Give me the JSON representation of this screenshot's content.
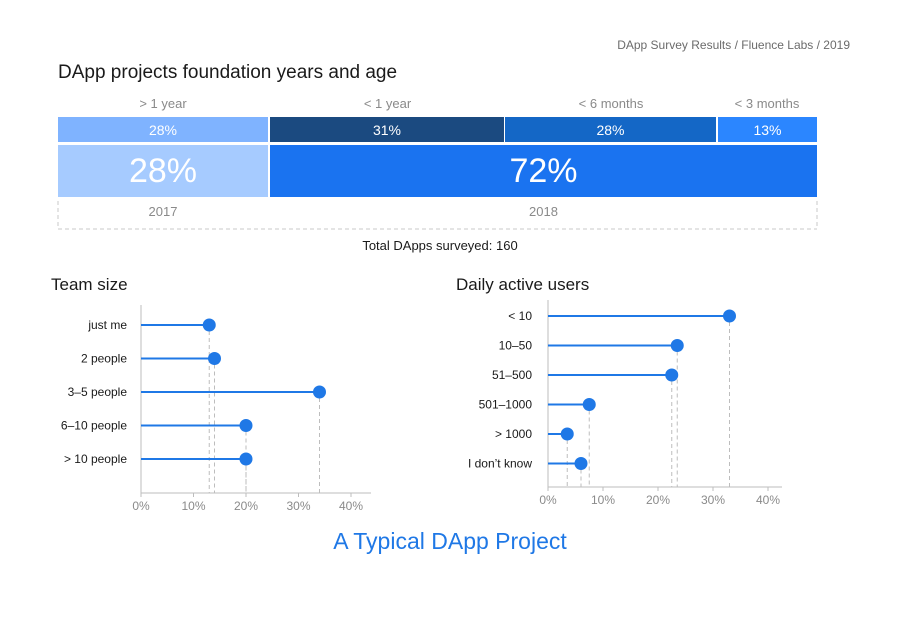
{
  "header": {
    "source": "DApp Survey Results / Fluence Labs / 2019",
    "title": "DApp projects foundation years and age"
  },
  "footer": {
    "title": "A Typical DApp Project"
  },
  "colors": {
    "accent": "#1f78e6",
    "seg_gt1": "#7fb3ff",
    "big_2017": "#a6cbff",
    "seg_lt1": "#1b4a80",
    "seg_lt6": "#1467c6",
    "seg_lt3": "#2b86ff",
    "big_2018": "#1a73f0"
  },
  "chart_data": [
    {
      "type": "bar",
      "title": "DApp projects foundation years and age",
      "categories": [
        "> 1 year",
        "< 1 year",
        "< 6 months",
        "< 3 months"
      ],
      "values": [
        28,
        31,
        28,
        13
      ],
      "value_labels": [
        "28%",
        "31%",
        "28%",
        "13%"
      ],
      "groups": [
        {
          "year": "2017",
          "value": 28,
          "label": "28%"
        },
        {
          "year": "2018",
          "value": 72,
          "label": "72%"
        }
      ],
      "note": "Total DApps surveyed: 160"
    },
    {
      "type": "scatter",
      "title": "Team size",
      "categories": [
        "just me",
        "2 people",
        "3–5 people",
        "6–10 people",
        "> 10 people"
      ],
      "values": [
        13,
        14,
        34,
        20,
        20
      ],
      "xlim": [
        0,
        40
      ],
      "ticks": [
        "0%",
        "10%",
        "20%",
        "30%",
        "40%"
      ]
    },
    {
      "type": "scatter",
      "title": "Daily active users",
      "categories": [
        "< 10",
        "10–50",
        "51–500",
        "501–1000",
        "> 1000",
        "I don’t know"
      ],
      "values": [
        33,
        23.5,
        22.5,
        7.5,
        3.5,
        6
      ],
      "xlim": [
        0,
        40
      ],
      "ticks": [
        "0%",
        "10%",
        "20%",
        "30%",
        "40%"
      ]
    }
  ]
}
